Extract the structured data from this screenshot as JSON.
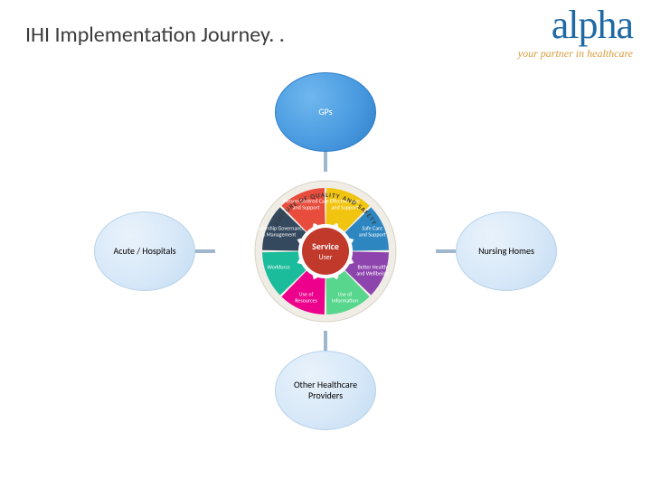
{
  "title": "IHI Implementation Journey. .",
  "logo": {
    "word": "alpha",
    "tagline": "your partner in healthcare",
    "word_color": "#1f6aa5",
    "tagline_color": "#d69a3a"
  },
  "diagram": {
    "type": "infographic",
    "background_color": "#ffffff",
    "bubbles": {
      "top": {
        "label": "GPs",
        "style": "blue",
        "fontsize": 10
      },
      "left": {
        "label": "Acute / Hospitals",
        "style": "light",
        "fontsize": 10
      },
      "right": {
        "label": "Nursing Homes",
        "style": "light",
        "fontsize": 10
      },
      "bottom": {
        "label": "Other Healthcare Providers",
        "style": "light",
        "fontsize": 10
      }
    },
    "connectors_color": "#9fb7cc",
    "center": {
      "ring_label": "CULTURE OF QUALITY AND SAFETY",
      "ring_bg": "#f0ede6",
      "ring_text_color": "#3b3b3b",
      "core_label": "Service",
      "core_sub": "User",
      "core_color": "#c0392b",
      "slices": [
        {
          "label": "Effective Care and Support",
          "color": "#f1c40f"
        },
        {
          "label": "Safe Care and Support",
          "color": "#2e86c1"
        },
        {
          "label": "Better Health and Wellbeing",
          "color": "#8e44ad"
        },
        {
          "label": "Use of Information",
          "color": "#58d68d"
        },
        {
          "label": "Use of Resources",
          "color": "#ec008c"
        },
        {
          "label": "Workforce",
          "color": "#1abc9c"
        },
        {
          "label": "Leadership Governance & Management",
          "color": "#34495e"
        },
        {
          "label": "Person-Centred Care and Support",
          "color": "#e74c3c"
        }
      ],
      "arrow_tick_color": "#ffffff"
    }
  }
}
